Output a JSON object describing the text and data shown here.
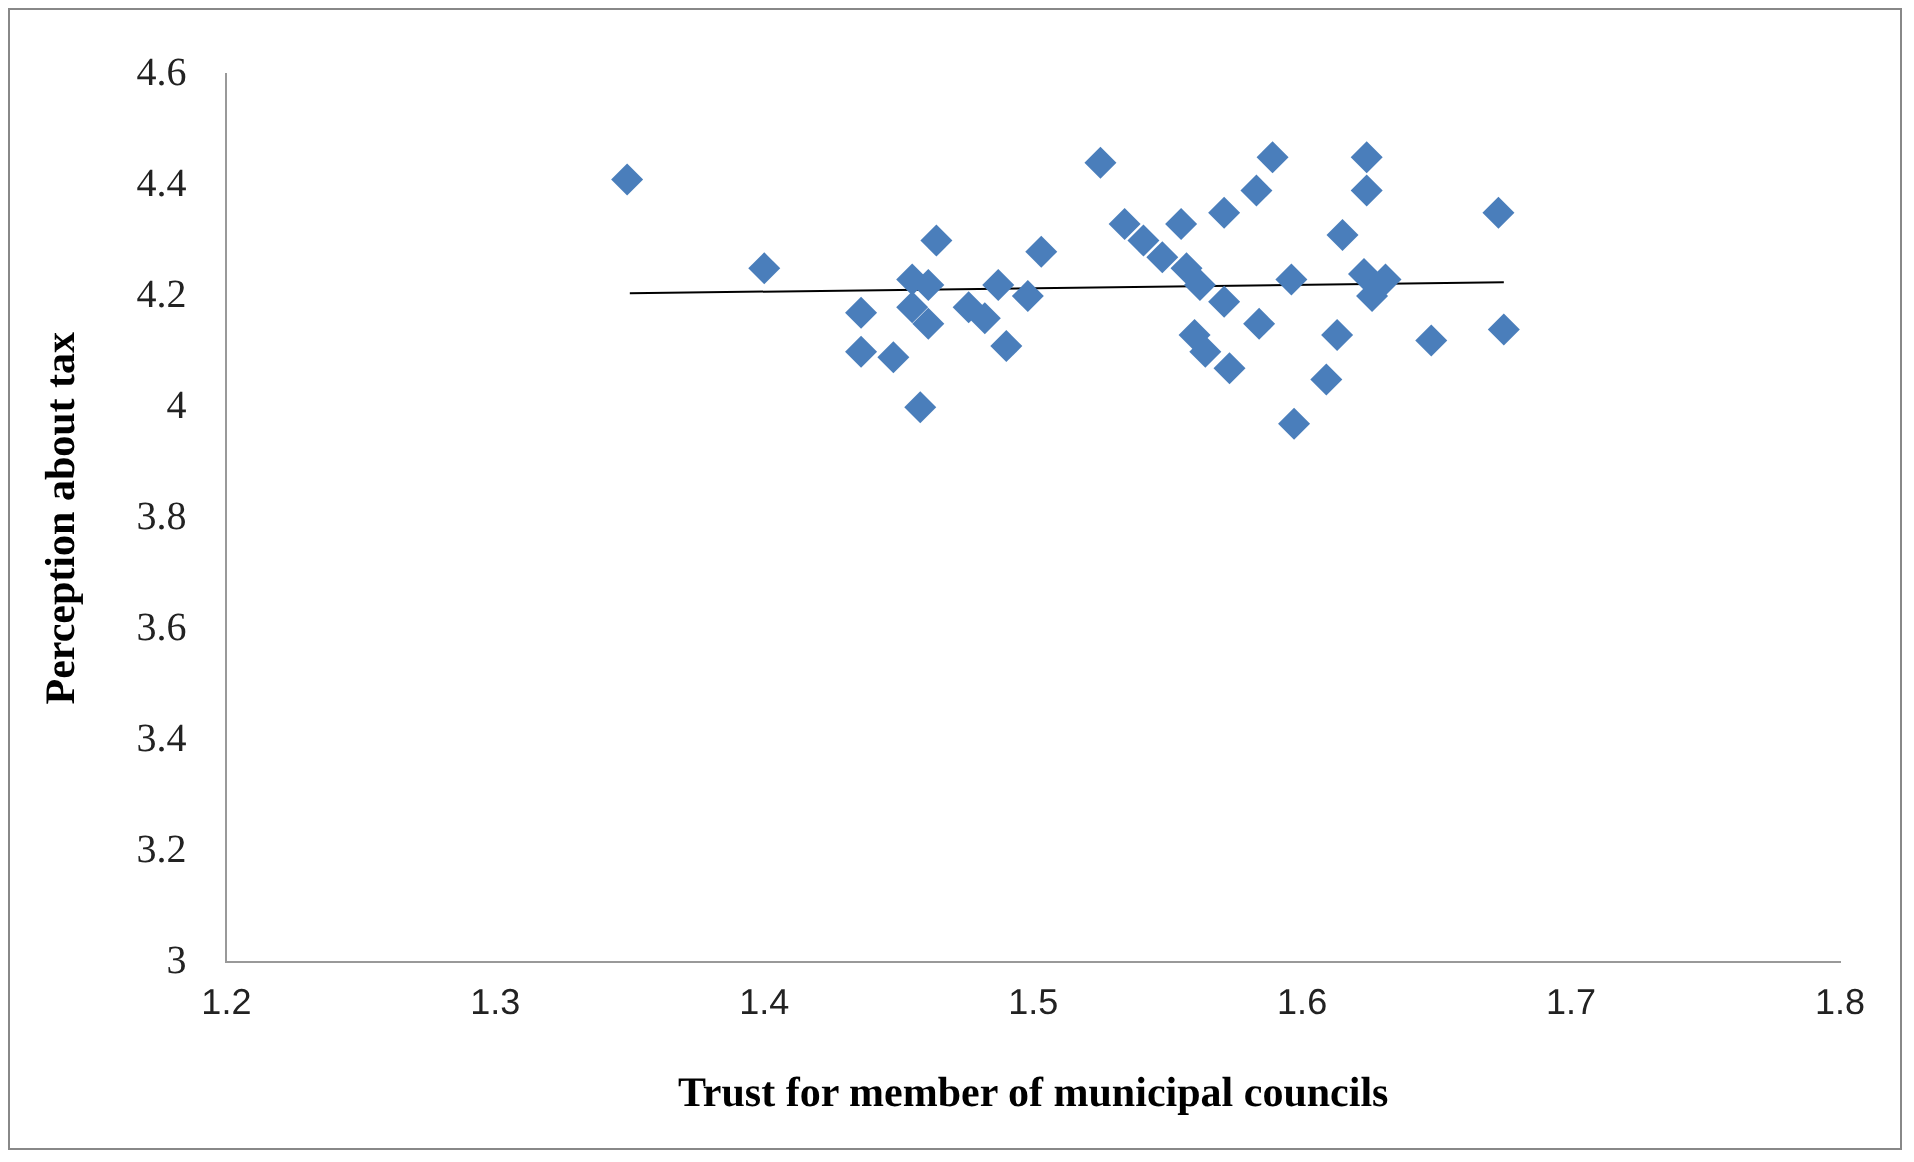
{
  "chart_data": {
    "type": "scatter",
    "xlabel": "Trust for member of municipal councils",
    "ylabel": "Perception about tax",
    "xlim": [
      1.2,
      1.8
    ],
    "xticks": [
      1.2,
      1.3,
      1.4,
      1.5,
      1.6,
      1.7,
      1.8
    ],
    "ylim": [
      3,
      4.6
    ],
    "yticks": [
      3,
      3.2,
      3.4,
      3.6,
      3.8,
      4,
      4.2,
      4.4,
      4.6
    ],
    "grid": false,
    "legend": false,
    "marker": "diamond",
    "series": [
      {
        "color": "#4a7ebb",
        "x": [
          1.349,
          1.4,
          1.461,
          1.436,
          1.436,
          1.448,
          1.455,
          1.455,
          1.461,
          1.458,
          1.464,
          1.476,
          1.482,
          1.487,
          1.49,
          1.498,
          1.503,
          1.525,
          1.534,
          1.541,
          1.548,
          1.557,
          1.555,
          1.562,
          1.571,
          1.56,
          1.564,
          1.571,
          1.573,
          1.571,
          1.583,
          1.589,
          1.584,
          1.596,
          1.597,
          1.615,
          1.613,
          1.609,
          1.624,
          1.624,
          1.623,
          1.626,
          1.631,
          1.648,
          1.673,
          1.675
        ],
        "values": [
          4.41,
          4.25,
          4.22,
          4.17,
          4.1,
          4.09,
          4.23,
          4.18,
          4.15,
          4.0,
          4.3,
          4.18,
          4.16,
          4.22,
          4.11,
          4.2,
          4.28,
          4.44,
          4.33,
          4.3,
          4.27,
          4.25,
          4.33,
          4.22,
          4.19,
          4.13,
          4.1,
          null,
          4.07,
          4.35,
          4.39,
          4.45,
          4.15,
          4.23,
          3.97,
          4.31,
          4.13,
          4.05,
          4.39,
          4.45,
          4.24,
          4.2,
          4.23,
          4.12,
          4.35,
          4.14
        ]
      },
      {
        "type": "line",
        "color": "#000000",
        "marker": "none",
        "x": [
          1.35,
          1.675
        ],
        "values": [
          4.205,
          4.225
        ]
      }
    ]
  }
}
